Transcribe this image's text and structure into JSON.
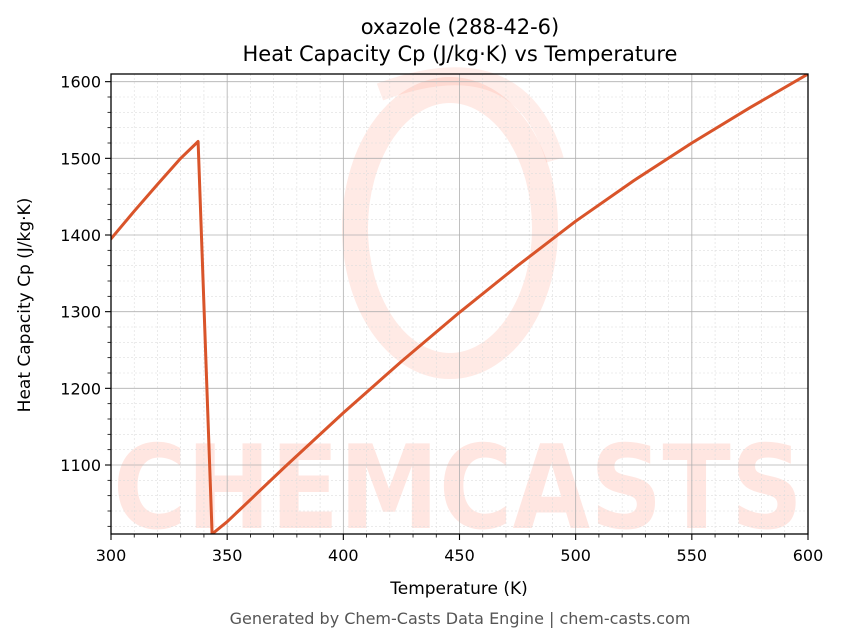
{
  "chart_data": {
    "type": "line",
    "title": "oxazole (288-42-6)",
    "subtitle": "Heat Capacity Cp (J/kg·K) vs Temperature",
    "xlabel": "Temperature (K)",
    "ylabel": "Heat Capacity Cp (J/kg·K)",
    "xlim": [
      300,
      600
    ],
    "ylim": [
      1010,
      1610
    ],
    "xticks": [
      300,
      350,
      400,
      450,
      500,
      550,
      600
    ],
    "yticks": [
      1100,
      1200,
      1300,
      1400,
      1500,
      1600
    ],
    "grid": true,
    "line_color": "#d9542a",
    "series": [
      {
        "segments": [
          {
            "x": [
              300,
              310,
              320,
              330,
              337.5
            ],
            "y": [
              1395,
              1431,
              1466,
              1500,
              1522
            ]
          },
          {
            "x": [
              337.5,
              343.5
            ],
            "y": [
              1522,
              1010
            ]
          },
          {
            "x": [
              343.5,
              350,
              375,
              400,
              425,
              450,
              475,
              500,
              525,
              550,
              575,
              600
            ],
            "y": [
              1010,
              1026,
              1098,
              1168,
              1235,
              1299,
              1360,
              1418,
              1471,
              1520,
              1566,
              1610
            ]
          }
        ]
      }
    ]
  },
  "watermark": {
    "text": "CHEMCASTS"
  },
  "footer": "Generated by Chem-Casts Data Engine | chem-casts.com"
}
